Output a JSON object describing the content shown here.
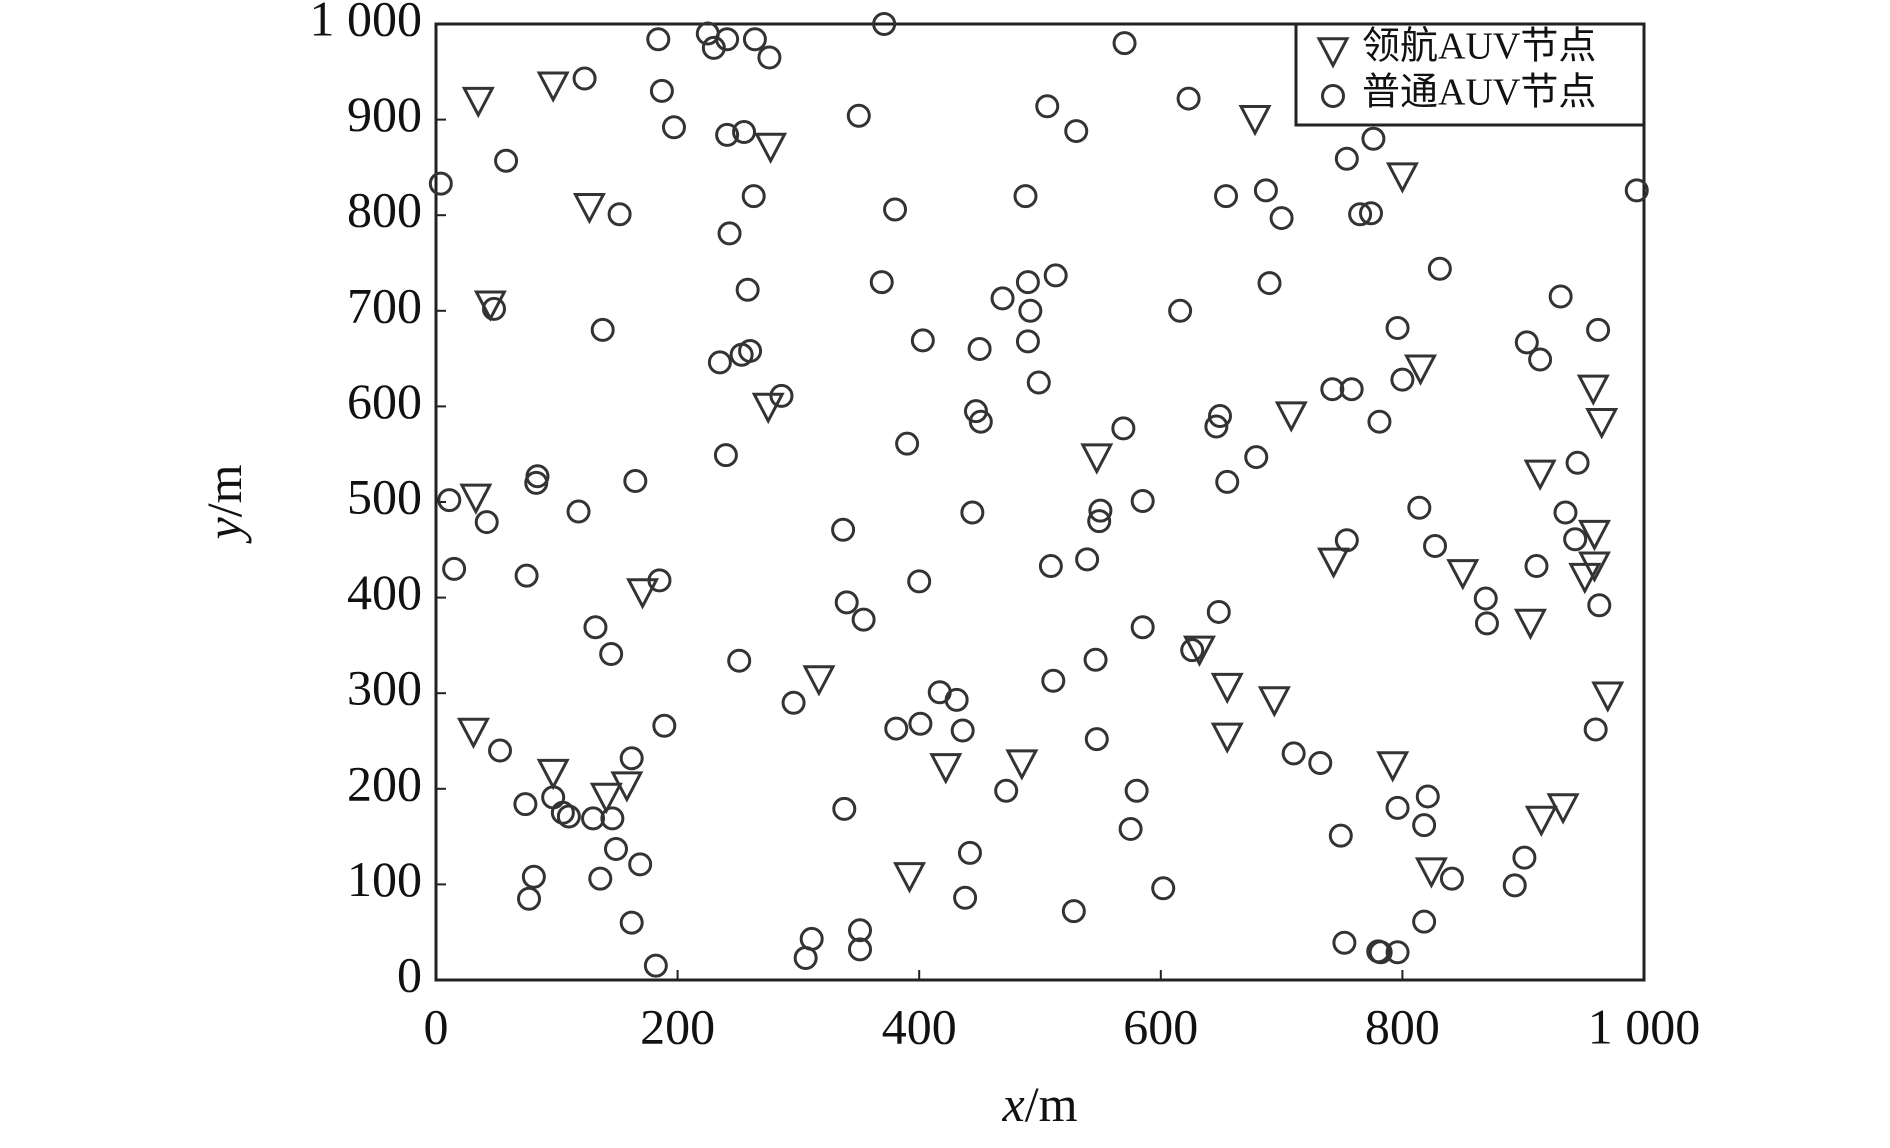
{
  "chart_data": {
    "type": "scatter",
    "xlabel": {
      "var": "x",
      "unit": "/m"
    },
    "ylabel": {
      "var": "y",
      "unit": "/m"
    },
    "xlim": [
      0,
      1000
    ],
    "ylim": [
      0,
      1000
    ],
    "xticks": [
      0,
      200,
      400,
      600,
      800,
      {
        "value": 1000,
        "label": "1 000"
      }
    ],
    "yticks": [
      0,
      100,
      200,
      300,
      400,
      500,
      600,
      700,
      800,
      900,
      {
        "value": 1000,
        "label": "1 000"
      }
    ],
    "legend": "upper right",
    "series": [
      {
        "name": "领航AUV节点",
        "marker": "triangle",
        "color": "#333333",
        "x": [
          35,
          97,
          127,
          45,
          277,
          275,
          33,
          171,
          31,
          97,
          141,
          158,
          317,
          392,
          422,
          485,
          547,
          632,
          655,
          655,
          694,
          678,
          800,
          708,
          815,
          743,
          850,
          906,
          792,
          824,
          915,
          933,
          914,
          958,
          965,
          959,
          959,
          951,
          970
        ],
        "y": [
          921,
          937,
          810,
          708,
          873,
          601,
          506,
          407,
          261,
          218,
          193,
          205,
          316,
          110,
          224,
          228,
          548,
          347,
          308,
          256,
          294,
          902,
          842,
          592,
          641,
          439,
          427,
          375,
          226,
          115,
          169,
          182,
          531,
          620,
          585,
          468,
          435,
          423,
          299
        ]
      },
      {
        "name": "普通AUV节点",
        "marker": "circle",
        "color": "#333333",
        "x": [
          4,
          58,
          48,
          11,
          42,
          15,
          75,
          84,
          83,
          118,
          165,
          138,
          123,
          152,
          184,
          187,
          197,
          225,
          230,
          241,
          264,
          276,
          371,
          241,
          255,
          243,
          263,
          258,
          253,
          260,
          235,
          286,
          240,
          350,
          380,
          369,
          403,
          450,
          447,
          451,
          390,
          469,
          490,
          492,
          490,
          499,
          513,
          488,
          506,
          530,
          570,
          623,
          616,
          654,
          687,
          700,
          690,
          649,
          646,
          655,
          569,
          585,
          550,
          549,
          509,
          539,
          444,
          337,
          340,
          354,
          400,
          185,
          132,
          145,
          251,
          296,
          417,
          431,
          401,
          381,
          436,
          546,
          585,
          626,
          648,
          511,
          547,
          189,
          53,
          162,
          74,
          97,
          105,
          110,
          130,
          146,
          149,
          136,
          81,
          77,
          169,
          162,
          182,
          311,
          306,
          351,
          351,
          338,
          442,
          438,
          472,
          580,
          575,
          602,
          528,
          710,
          732,
          749,
          752,
          780,
          782,
          796,
          818,
          841,
          796,
          821,
          818,
          814,
          827,
          869,
          870,
          754,
          781,
          742,
          758,
          800,
          796,
          831,
          765,
          774,
          754,
          776,
          679,
          903,
          914,
          931,
          962,
          945,
          935,
          943,
          911,
          963,
          960,
          901,
          893,
          994
        ],
        "y": [
          833,
          857,
          702,
          502,
          479,
          430,
          423,
          527,
          520,
          490,
          522,
          680,
          943,
          801,
          984,
          930,
          892,
          990,
          975,
          984,
          984,
          965,
          1000,
          884,
          887,
          781,
          820,
          722,
          654,
          658,
          646,
          611,
          549,
          904,
          806,
          730,
          669,
          660,
          595,
          584,
          561,
          713,
          730,
          700,
          668,
          625,
          737,
          820,
          914,
          888,
          980,
          922,
          700,
          820,
          826,
          797,
          729,
          590,
          579,
          521,
          577,
          501,
          491,
          480,
          433,
          440,
          489,
          471,
          395,
          377,
          417,
          418,
          369,
          341,
          334,
          290,
          301,
          293,
          268,
          263,
          261,
          335,
          369,
          345,
          385,
          313,
          252,
          266,
          240,
          232,
          184,
          191,
          175,
          171,
          169,
          169,
          137,
          106,
          108,
          85,
          121,
          60,
          15,
          43,
          23,
          52,
          32,
          179,
          133,
          86,
          198,
          198,
          158,
          96,
          72,
          237,
          227,
          151,
          39,
          30,
          29,
          29,
          61,
          106,
          180,
          192,
          162,
          494,
          454,
          399,
          373,
          460,
          584,
          618,
          618,
          628,
          682,
          744,
          801,
          802,
          859,
          880,
          547,
          667,
          649,
          715,
          680,
          541,
          489,
          461,
          433,
          392,
          262,
          128,
          99,
          826
        ]
      }
    ]
  }
}
